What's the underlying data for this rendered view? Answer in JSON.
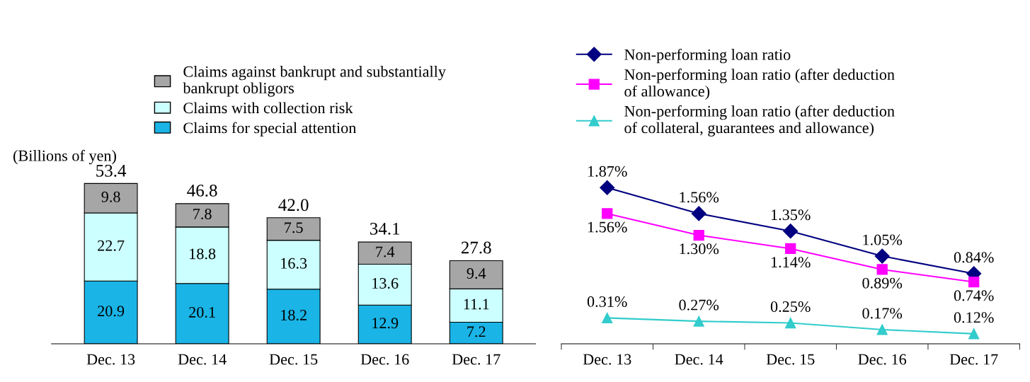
{
  "chart_data": [
    {
      "type": "bar",
      "stacked": true,
      "ylabel": "(Billions of yen)",
      "categories": [
        "Dec. 13",
        "Dec. 14",
        "Dec. 15",
        "Dec. 16",
        "Dec. 17"
      ],
      "data_labels": true,
      "legend": "top",
      "annotations": [
        {
          "text": "53.4",
          "x": "Dec. 13",
          "y": 53.4
        },
        {
          "text": "46.8",
          "x": "Dec. 14",
          "y": 46.8
        },
        {
          "text": "42.0",
          "x": "Dec. 15",
          "y": 42.0
        },
        {
          "text": "34.1",
          "x": "Dec. 16",
          "y": 34.1
        },
        {
          "text": "27.8",
          "x": "Dec. 17",
          "y": 27.8
        }
      ],
      "series": [
        {
          "name": "Claims for special attention",
          "color": "#1ab4e6",
          "values": [
            20.9,
            20.1,
            18.2,
            12.9,
            7.2
          ]
        },
        {
          "name": "Claims with collection risk",
          "color": "#ccffff",
          "values": [
            22.7,
            18.8,
            16.3,
            13.6,
            11.1
          ]
        },
        {
          "name": "Claims against bankrupt and substantially\nbankrupt obligors",
          "color": "#a6a6a6",
          "values": [
            9.8,
            7.8,
            7.5,
            7.4,
            9.4
          ]
        }
      ]
    },
    {
      "type": "line",
      "categories": [
        "Dec. 13",
        "Dec. 14",
        "Dec. 15",
        "Dec. 16",
        "Dec. 17"
      ],
      "legend": "top",
      "series": [
        {
          "name": "Non-performing loan ratio",
          "color": "#000080",
          "marker": "diamond",
          "values": [
            1.87,
            1.56,
            1.35,
            1.05,
            0.84
          ],
          "value_labels": [
            "1.87%",
            "1.56%",
            "1.35%",
            "1.05%",
            "0.84%"
          ]
        },
        {
          "name": "Non-performing loan ratio (after deduction\nof allowance)",
          "color": "#ff00ff",
          "marker": "square",
          "values": [
            1.56,
            1.3,
            1.14,
            0.89,
            0.74
          ],
          "value_labels": [
            "1.56%",
            "1.30%",
            "1.14%",
            "0.89%",
            "0.74%"
          ]
        },
        {
          "name": "Non-performing loan ratio (after deduction\nof collateral, guarantees and allowance)",
          "color": "#33cccc",
          "marker": "triangle",
          "values": [
            0.31,
            0.27,
            0.25,
            0.17,
            0.12
          ],
          "value_labels": [
            "0.31%",
            "0.27%",
            "0.25%",
            "0.17%",
            "0.12%"
          ]
        }
      ]
    }
  ]
}
